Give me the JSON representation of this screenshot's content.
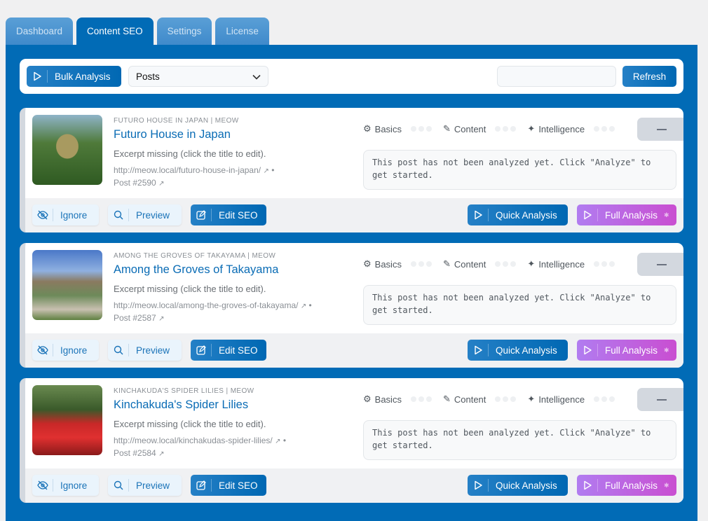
{
  "tabs": [
    "Dashboard",
    "Content SEO",
    "Settings",
    "License"
  ],
  "active_tab": "Content SEO",
  "toolbar": {
    "bulk_label": "Bulk Analysis",
    "post_type": "Posts",
    "search_value": "",
    "refresh_label": "Refresh"
  },
  "labels": {
    "basics": "Basics",
    "content": "Content",
    "intelligence": "Intelligence",
    "ignore": "Ignore",
    "preview": "Preview",
    "edit_seo": "Edit SEO",
    "quick": "Quick Analysis",
    "full": "Full Analysis",
    "not_analyzed": "This post has not been analyzed yet. Click \"Analyze\" to get started."
  },
  "posts": [
    {
      "kicker": "FUTURO HOUSE IN JAPAN | MEOW",
      "title": "Futuro House in Japan",
      "excerpt": "Excerpt missing (click the title to edit).",
      "url": "http://meow.local/futuro-house-in-japan/",
      "post_id": "Post #2590"
    },
    {
      "kicker": "AMONG THE GROVES OF TAKAYAMA | MEOW",
      "title": "Among the Groves of Takayama",
      "excerpt": "Excerpt missing (click the title to edit).",
      "url": "http://meow.local/among-the-groves-of-takayama/",
      "post_id": "Post #2587"
    },
    {
      "kicker": "KINCHAKUDA'S SPIDER LILIES | MEOW",
      "title": "Kinchakuda's Spider Lilies",
      "excerpt": "Excerpt missing (click the title to edit).",
      "url": "http://meow.local/kinchakudas-spider-lilies/",
      "post_id": "Post #2584"
    }
  ],
  "colors": {
    "brand": "#016bb6",
    "full_analysis": "#c94ed1"
  }
}
